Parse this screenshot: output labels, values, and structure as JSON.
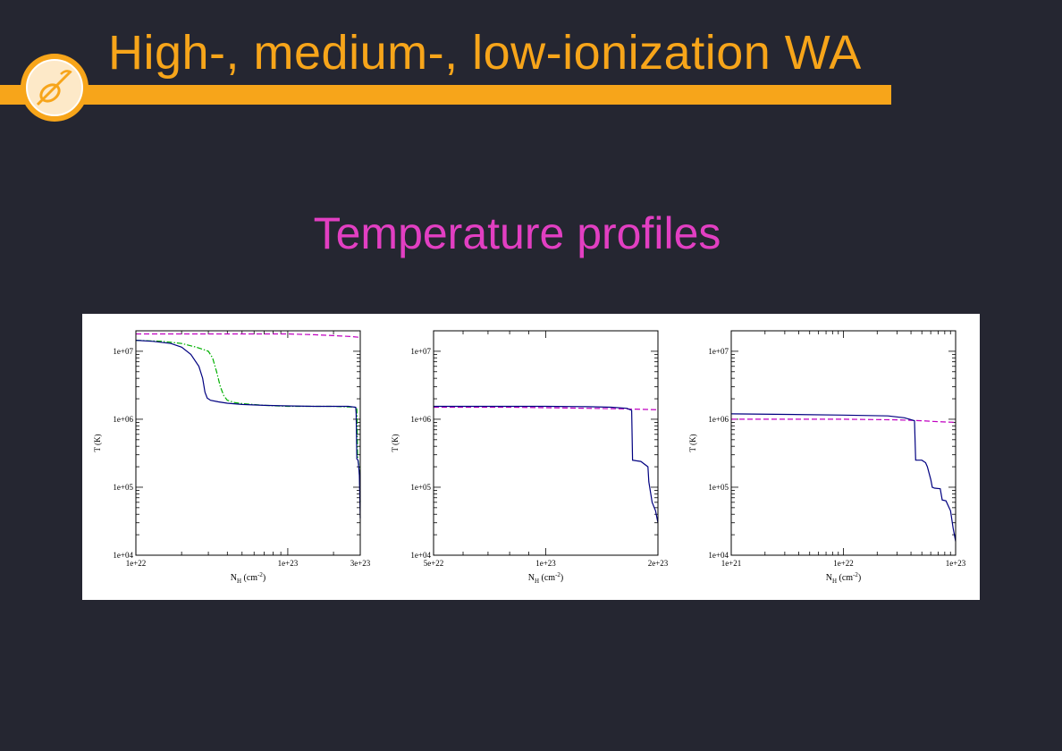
{
  "slide": {
    "title": "High-, medium-, low-ionization WA",
    "subtitle": "Temperature profiles"
  },
  "colors": {
    "background": "#252631",
    "accent": "#f7a51a",
    "subtitle": "#e23fc2",
    "series_solid": "#000080",
    "series_dashdot": "#00b000",
    "series_dashed": "#c000c0"
  },
  "logo": {
    "icon": "telescope-logo-icon"
  },
  "chart_data": [
    {
      "type": "line",
      "xscale": "log",
      "yscale": "log",
      "xlabel": "N",
      "xlabel_sub": "H",
      "xlabel_unit": "(cm",
      "xlabel_sup": "-2",
      "xlabel_close": ")",
      "ylabel": "T (K)",
      "xlim": [
        1e+22,
        3e+23
      ],
      "ylim": [
        10000.0,
        20000000.0
      ],
      "xticks": [
        1e+22,
        1e+23,
        3e+23
      ],
      "xtick_labels": [
        "1e+22",
        "1e+23",
        "3e+23"
      ],
      "yticks": [
        10000.0,
        100000.0,
        1000000.0,
        10000000.0
      ],
      "ytick_labels": [
        "1e+04",
        "1e+05",
        "1e+06",
        "1e+07"
      ],
      "series": [
        {
          "style": "dashed",
          "color": "#c000c0",
          "x": [
            1e+22,
            5e+22,
            1e+23,
            1.5e+23,
            2e+23,
            2.6e+23,
            3e+23
          ],
          "y": [
            18000000.0,
            18000000.0,
            18000000.0,
            17500000.0,
            17000000.0,
            16500000.0,
            16000000.0
          ]
        },
        {
          "style": "dashdot",
          "color": "#00b000",
          "x": [
            1e+22,
            1.5e+22,
            2e+22,
            2.5e+22,
            3e+22,
            3.2e+22,
            3.4e+22,
            3.6e+22,
            3.8e+22,
            4e+22,
            4.5e+22,
            5e+22,
            7e+22,
            1e+23,
            1.5e+23,
            2e+23,
            2.8e+23,
            2.85e+23,
            2.88e+23,
            2.9e+23,
            2.95e+23,
            3e+23
          ],
          "y": [
            14500000.0,
            14000000.0,
            13000000.0,
            11500000.0,
            10000000.0,
            8000000.0,
            5000000.0,
            3000000.0,
            2200000.0,
            1900000.0,
            1750000.0,
            1700000.0,
            1600000.0,
            1550000.0,
            1550000.0,
            1550000.0,
            1500000.0,
            1400000.0,
            300000.0,
            250000.0,
            200000.0,
            60000.0
          ]
        },
        {
          "style": "solid",
          "color": "#000080",
          "x": [
            1e+22,
            1.3e+22,
            1.7e+22,
            2e+22,
            2.3e+22,
            2.6e+22,
            2.75e+22,
            2.85e+22,
            2.95e+22,
            3.1e+22,
            3.5e+22,
            4e+22,
            5e+22,
            7e+22,
            1e+23,
            1.5e+23,
            2e+23,
            2.5e+23,
            2.8e+23,
            2.82e+23,
            2.85e+23,
            2.9e+23,
            2.93e+23,
            2.96e+23,
            3e+23
          ],
          "y": [
            14500000.0,
            14000000.0,
            13000000.0,
            11500000.0,
            9000000.0,
            6000000.0,
            4000000.0,
            2500000.0,
            2050000.0,
            1900000.0,
            1800000.0,
            1720000.0,
            1650000.0,
            1600000.0,
            1570000.0,
            1550000.0,
            1550000.0,
            1550000.0,
            1500000.0,
            1200000.0,
            260000.0,
            250000.0,
            200000.0,
            150000.0,
            35000.0
          ]
        }
      ]
    },
    {
      "type": "line",
      "xscale": "log",
      "yscale": "log",
      "xlabel": "N",
      "xlabel_sub": "H",
      "xlabel_unit": "(cm",
      "xlabel_sup": "-2",
      "xlabel_close": ")",
      "ylabel": "T (K)",
      "xlim": [
        5e+22,
        2e+23
      ],
      "ylim": [
        10000.0,
        20000000.0
      ],
      "xticks": [
        5e+22,
        1e+23,
        2e+23
      ],
      "xtick_labels": [
        "5e+22",
        "1e+23",
        "2e+23"
      ],
      "yticks": [
        10000.0,
        100000.0,
        1000000.0,
        10000000.0
      ],
      "ytick_labels": [
        "1e+04",
        "1e+05",
        "1e+06",
        "1e+07"
      ],
      "series": [
        {
          "style": "dashed",
          "color": "#c000c0",
          "x": [
            5e+22,
            8e+22,
            1e+23,
            1.3e+23,
            1.6e+23,
            1.8e+23,
            2e+23
          ],
          "y": [
            1500000.0,
            1500000.0,
            1480000.0,
            1450000.0,
            1420000.0,
            1400000.0,
            1380000.0
          ]
        },
        {
          "style": "solid",
          "color": "#000080",
          "x": [
            5e+22,
            7e+22,
            1e+23,
            1.3e+23,
            1.5e+23,
            1.65e+23,
            1.7e+23,
            1.71e+23,
            1.75e+23,
            1.8e+23,
            1.88e+23,
            1.89e+23,
            1.93e+23,
            1.97e+23,
            2e+23
          ],
          "y": [
            1550000.0,
            1550000.0,
            1550000.0,
            1530000.0,
            1500000.0,
            1450000.0,
            1350000.0,
            250000.0,
            245000.0,
            240000.0,
            200000.0,
            120000.0,
            60000.0,
            45000.0,
            30000.0
          ]
        }
      ]
    },
    {
      "type": "line",
      "xscale": "log",
      "yscale": "log",
      "xlabel": "N",
      "xlabel_sub": "H",
      "xlabel_unit": "(cm",
      "xlabel_sup": "-2",
      "xlabel_close": ")",
      "ylabel": "T (K)",
      "xlim": [
        1e+21,
        1e+23
      ],
      "ylim": [
        10000.0,
        20000000.0
      ],
      "xticks": [
        1e+21,
        1e+22,
        1e+23
      ],
      "xtick_labels": [
        "1e+21",
        "1e+22",
        "1e+23"
      ],
      "yticks": [
        10000.0,
        100000.0,
        1000000.0,
        10000000.0
      ],
      "ytick_labels": [
        "1e+04",
        "1e+05",
        "1e+06",
        "1e+07"
      ],
      "series": [
        {
          "style": "dashed",
          "color": "#c000c0",
          "x": [
            1e+21,
            3e+21,
            1e+22,
            3e+22,
            5e+22,
            7e+22,
            1e+23
          ],
          "y": [
            1000000.0,
            1000000.0,
            1000000.0,
            980000.0,
            950000.0,
            920000.0,
            900000.0
          ]
        },
        {
          "style": "solid",
          "color": "#000080",
          "x": [
            1e+21,
            3e+21,
            1e+22,
            2.5e+22,
            3.5e+22,
            4.3e+22,
            4.4e+22,
            5e+22,
            5.4e+22,
            5.6e+22,
            6e+22,
            6.2e+22,
            6.5e+22,
            7.3e+22,
            7.6e+22,
            8.2e+22,
            9e+22,
            9.5e+22,
            1e+23
          ],
          "y": [
            1200000.0,
            1180000.0,
            1150000.0,
            1120000.0,
            1050000.0,
            950000.0,
            250000.0,
            250000.0,
            230000.0,
            200000.0,
            130000.0,
            100000.0,
            97000.0,
            95000.0,
            65000.0,
            63000.0,
            45000.0,
            25000.0,
            16000.0
          ]
        }
      ]
    }
  ]
}
